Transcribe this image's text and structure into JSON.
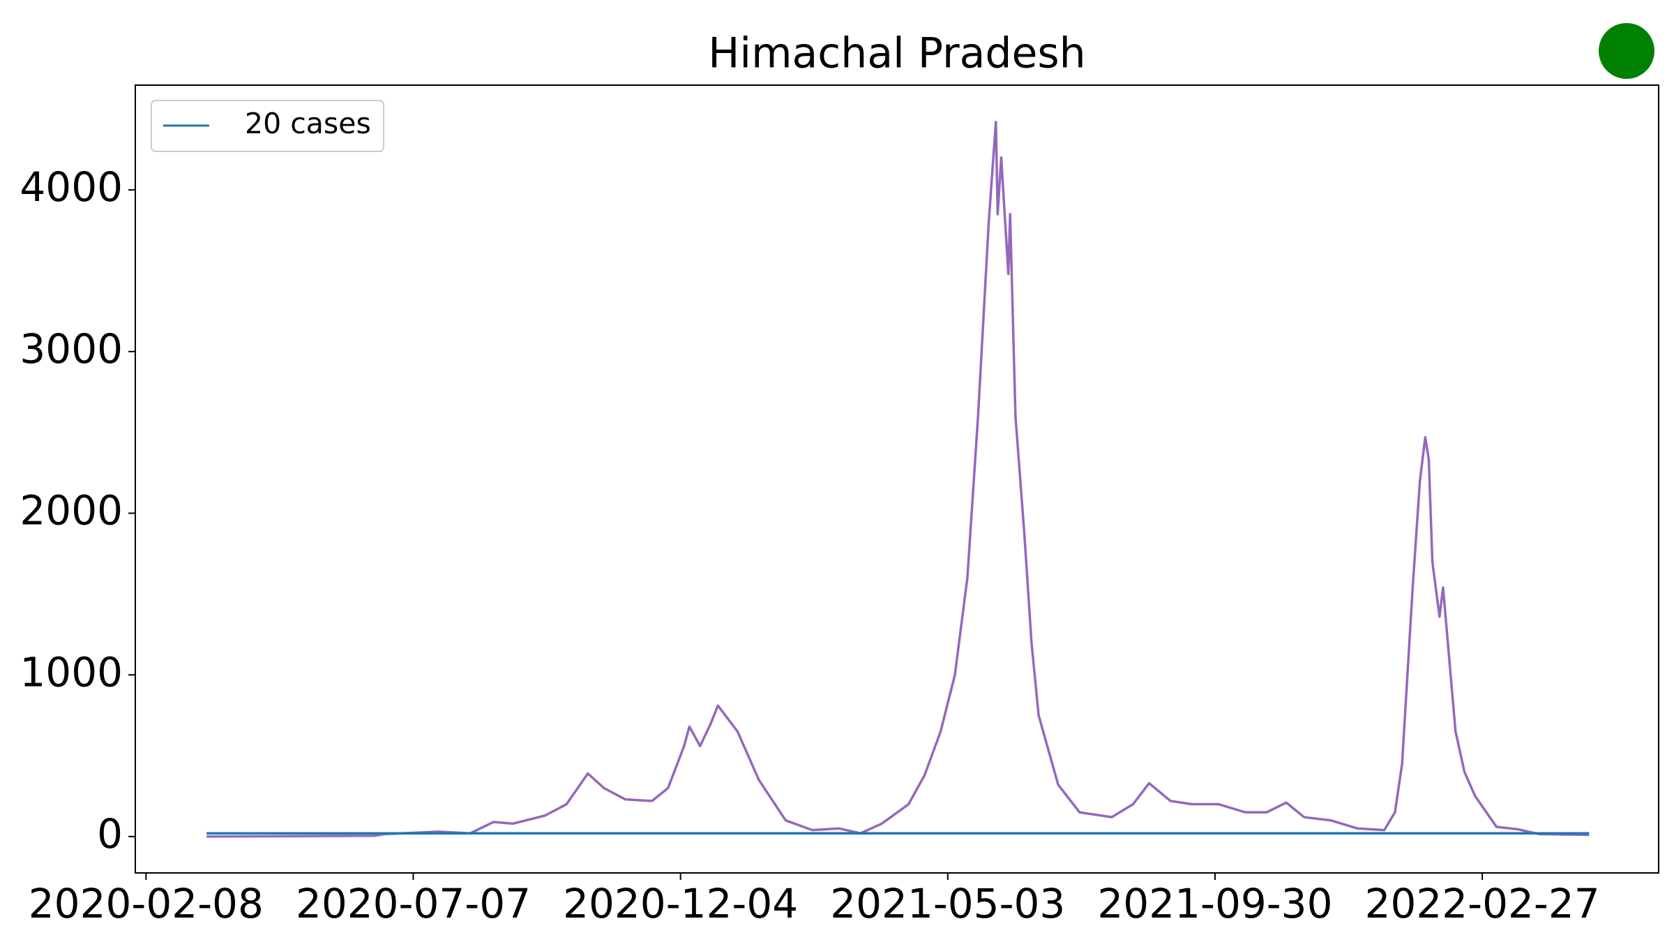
{
  "chart_data": {
    "type": "line",
    "title": "Himachal Pradesh",
    "xlim": [
      "2020-02-02",
      "2022-06-06"
    ],
    "xticks": [
      "2020-02-08",
      "2020-07-07",
      "2020-12-04",
      "2021-05-03",
      "2021-09-30",
      "2022-02-27"
    ],
    "ylim": [
      -225,
      4648
    ],
    "yticks": [
      0,
      1000,
      2000,
      3000,
      4000
    ],
    "legend": "upper left",
    "series": [
      {
        "color": "#9467bd",
        "x": [
          "2020-03-13",
          "2020-06-15",
          "2020-06-21",
          "2020-07-21",
          "2020-08-08",
          "2020-08-21",
          "2020-09-01",
          "2020-09-19",
          "2020-10-01",
          "2020-10-13",
          "2020-10-22",
          "2020-11-03",
          "2020-11-18",
          "2020-11-27",
          "2020-12-06",
          "2020-12-09",
          "2020-12-15",
          "2020-12-21",
          "2020-12-25",
          "2021-01-05",
          "2021-01-17",
          "2021-02-01",
          "2021-02-16",
          "2021-03-03",
          "2021-03-15",
          "2021-03-27",
          "2021-04-11",
          "2021-04-20",
          "2021-04-29",
          "2021-05-07",
          "2021-05-14",
          "2021-05-20",
          "2021-05-26",
          "2021-05-30",
          "2021-05-31",
          "2021-06-02",
          "2021-06-06",
          "2021-06-07",
          "2021-06-10",
          "2021-06-15",
          "2021-06-19",
          "2021-06-23",
          "2021-07-04",
          "2021-07-16",
          "2021-08-03",
          "2021-08-15",
          "2021-08-24",
          "2021-09-05",
          "2021-09-17",
          "2021-10-02",
          "2021-10-17",
          "2021-10-29",
          "2021-11-09",
          "2021-11-19",
          "2021-12-04",
          "2021-12-19",
          "2022-01-03",
          "2022-01-09",
          "2022-01-13",
          "2022-01-19",
          "2022-01-23",
          "2022-01-26",
          "2022-01-28",
          "2022-01-30",
          "2022-02-03",
          "2022-02-05",
          "2022-02-09",
          "2022-02-12",
          "2022-02-17",
          "2022-02-23",
          "2022-03-07",
          "2022-03-19",
          "2022-03-31",
          "2022-04-28"
        ],
        "values": [
          0,
          5,
          15,
          30,
          20,
          90,
          80,
          130,
          200,
          390,
          300,
          230,
          220,
          300,
          560,
          680,
          560,
          700,
          810,
          650,
          350,
          100,
          40,
          50,
          20,
          80,
          200,
          380,
          650,
          1000,
          1600,
          2600,
          3800,
          4420,
          3850,
          4200,
          3480,
          3850,
          2600,
          1870,
          1200,
          750,
          320,
          150,
          120,
          200,
          330,
          220,
          200,
          200,
          150,
          150,
          210,
          120,
          100,
          50,
          40,
          150,
          450,
          1550,
          2200,
          2470,
          2330,
          1700,
          1360,
          1540,
          1030,
          650,
          400,
          250,
          60,
          45,
          15,
          10
        ]
      },
      {
        "name": "20 cases",
        "color": "#1f77b4",
        "x": [
          "2020-03-13",
          "2022-04-28"
        ],
        "values": [
          20,
          20
        ]
      }
    ]
  }
}
